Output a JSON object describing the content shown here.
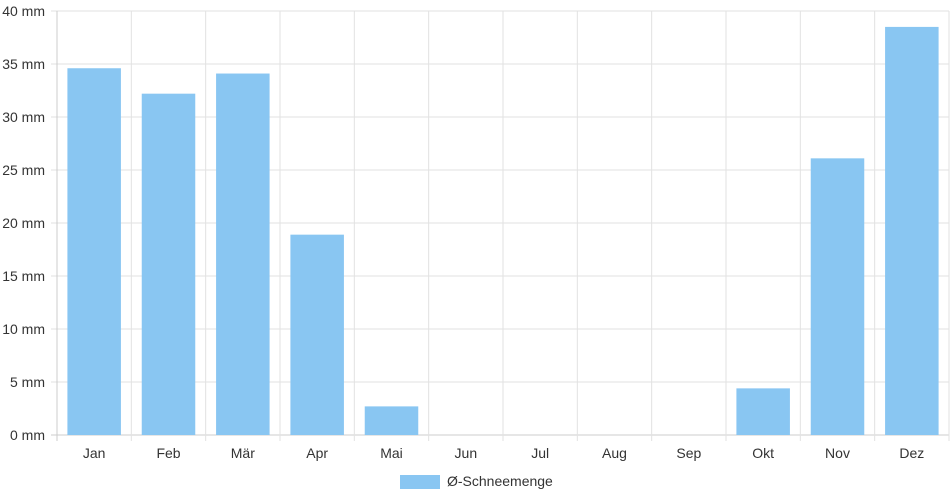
{
  "chart_data": {
    "type": "bar",
    "categories": [
      "Jan",
      "Feb",
      "Mär",
      "Apr",
      "Mai",
      "Jun",
      "Jul",
      "Aug",
      "Sep",
      "Okt",
      "Nov",
      "Dez"
    ],
    "series": [
      {
        "name": "Ø-Schneemenge",
        "values": [
          34.6,
          32.2,
          34.1,
          18.9,
          2.7,
          0,
          0,
          0,
          0,
          4.4,
          26.1,
          38.5
        ]
      }
    ],
    "ylim": [
      0,
      40
    ],
    "y_ticks": [
      "0 mm",
      "5 mm",
      "10 mm",
      "15 mm",
      "20 mm",
      "25 mm",
      "30 mm",
      "35 mm",
      "40 mm"
    ],
    "grid": true,
    "legend_position": "bottom",
    "colors": {
      "bar": "#89c6f2",
      "grid": "#e2e2e2",
      "axis": "#cccccc"
    }
  }
}
